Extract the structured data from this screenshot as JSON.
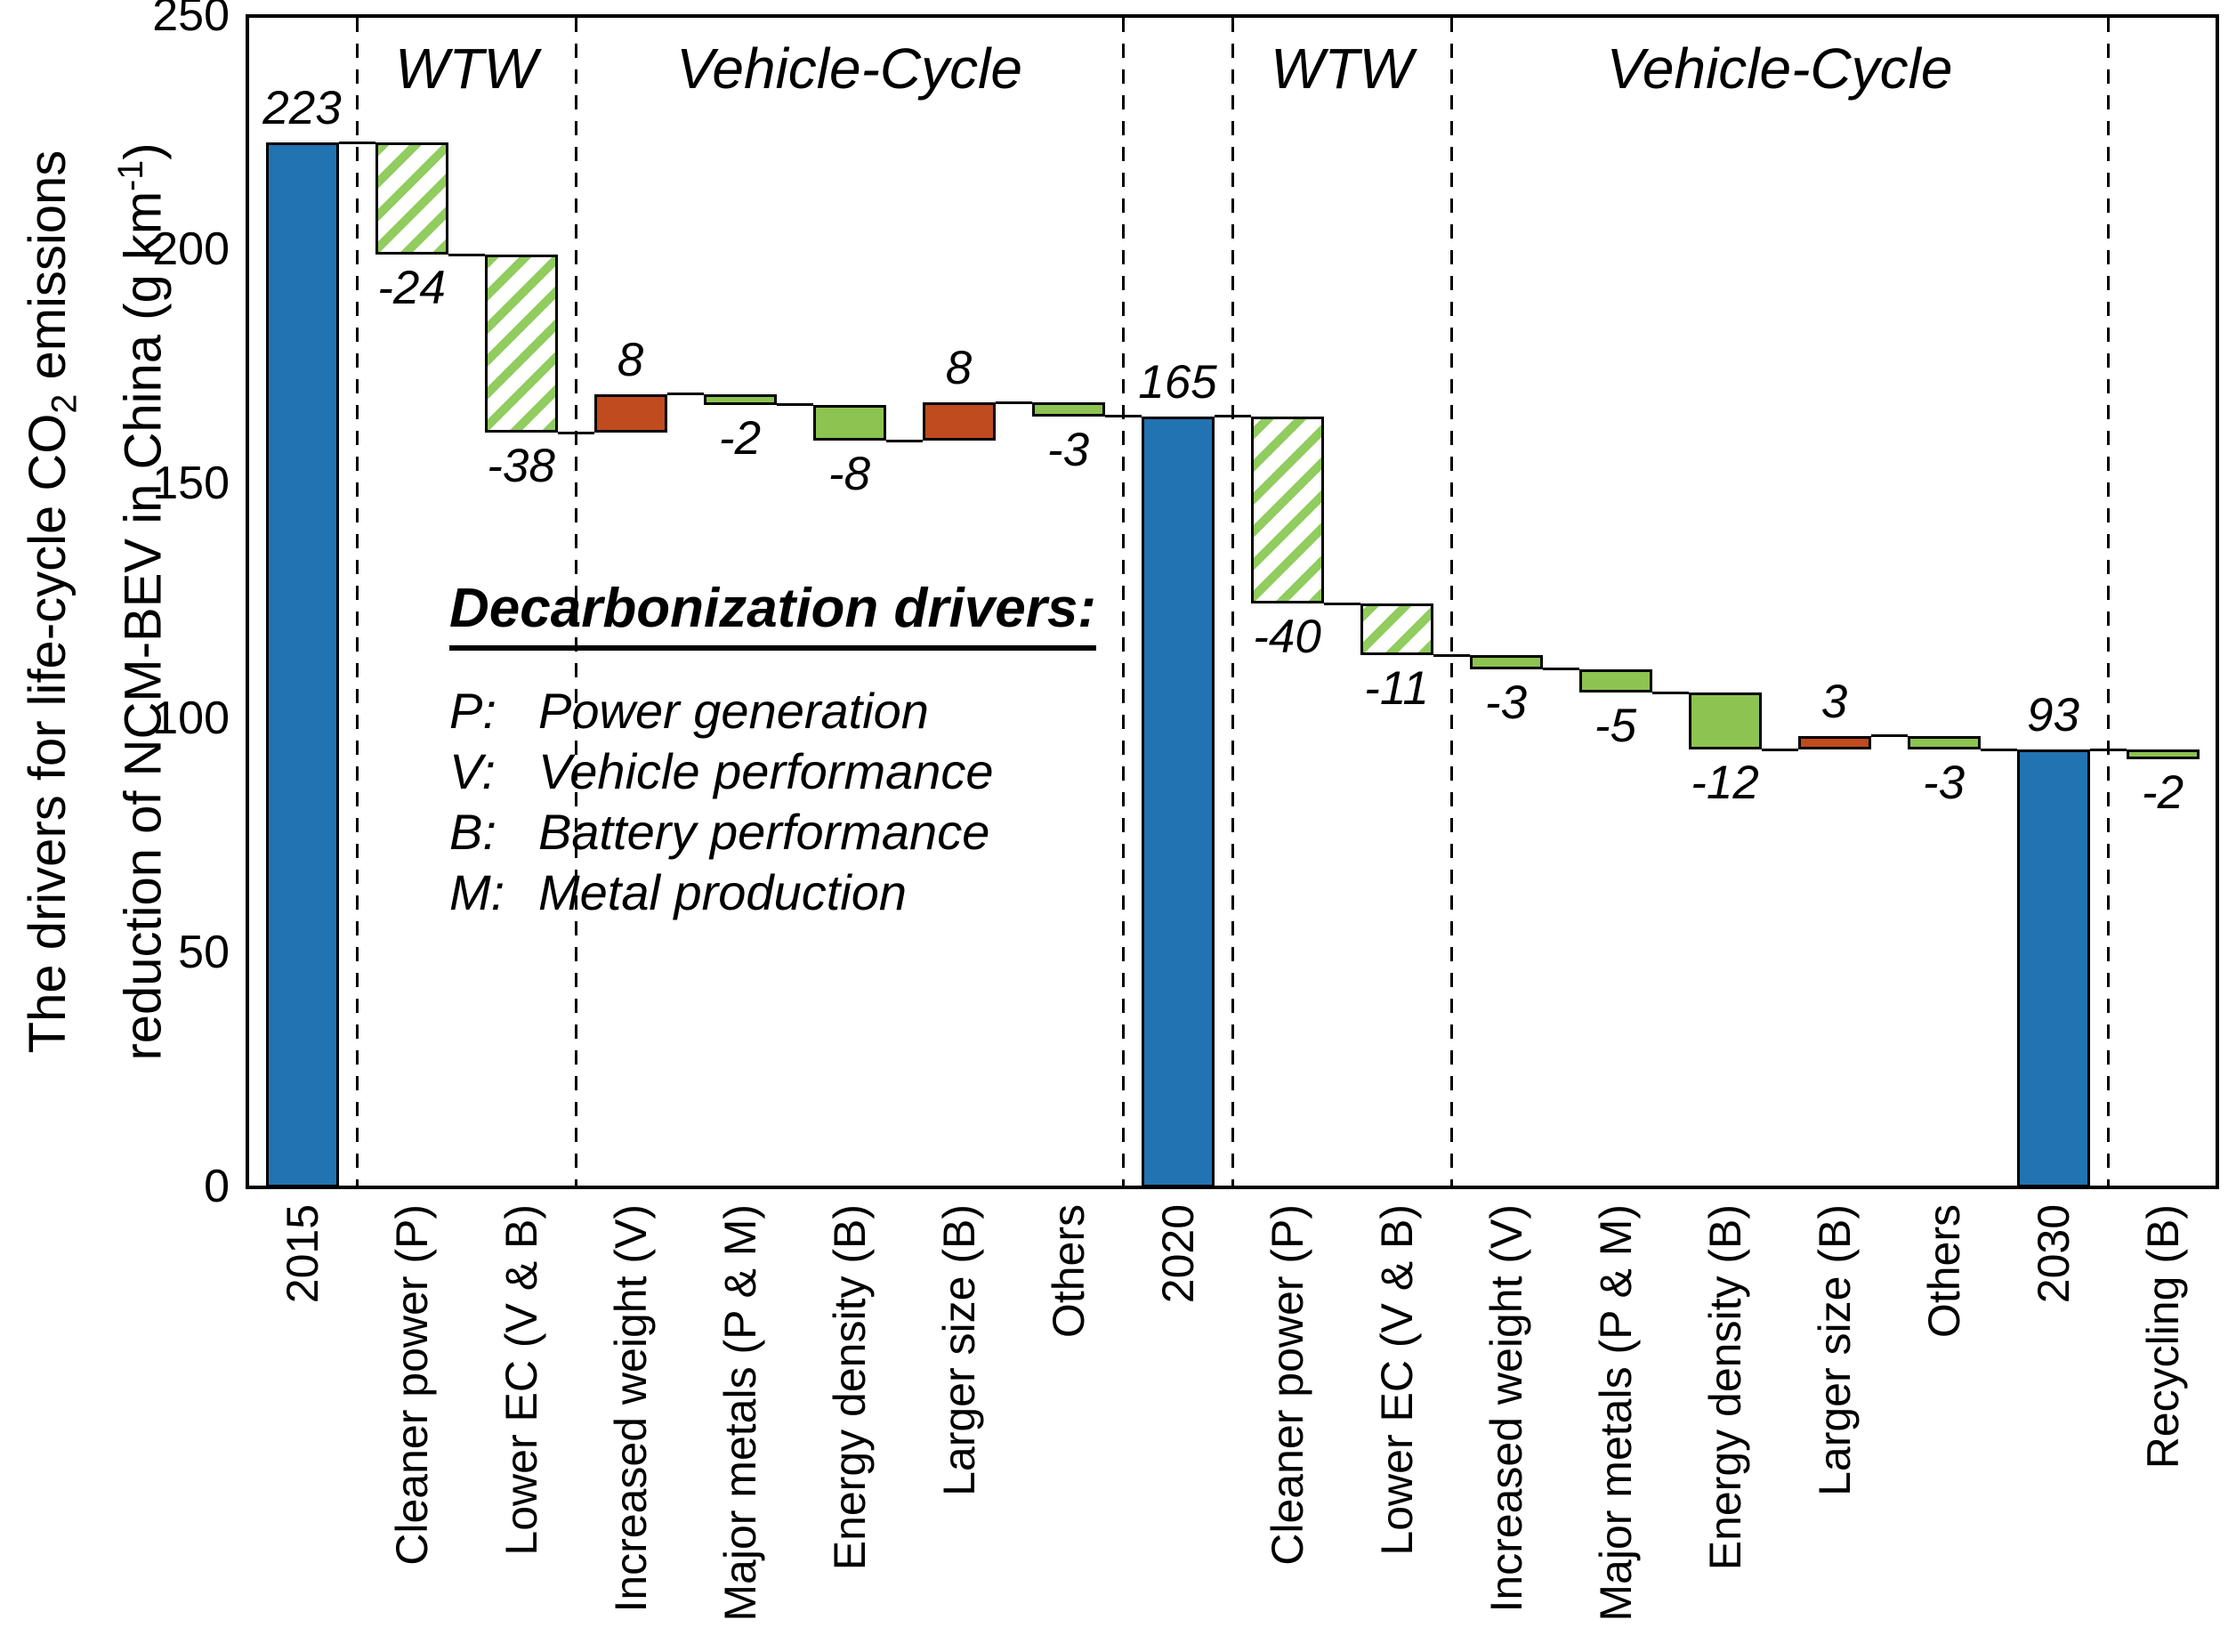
{
  "chart_data": {
    "type": "bar",
    "subtype": "waterfall",
    "title": "",
    "ylabel": {
      "line1": {
        "pre": "The drivers for life-cycle CO",
        "sub": "2",
        "post": " emissions"
      },
      "line2": {
        "pre": "reduction of NCM-BEV in China (g km",
        "sup": "-1",
        "post": ")"
      }
    },
    "ylim": [
      0,
      250
    ],
    "yticks": [
      0,
      50,
      100,
      150,
      200,
      250
    ],
    "grid": false,
    "bars": [
      {
        "category": "2015",
        "kind": "total",
        "style": "blue",
        "start": 0,
        "end": 223,
        "value": 223,
        "label": "223",
        "label_pos": "above"
      },
      {
        "category": "Cleaner power (P)",
        "kind": "delta",
        "style": "hatch",
        "start": 223,
        "end": 199,
        "value": -24,
        "label": "-24",
        "label_pos": "below"
      },
      {
        "category": "Lower EC (V & B)",
        "kind": "delta",
        "style": "hatch",
        "start": 199,
        "end": 161,
        "value": -38,
        "label": "-38",
        "label_pos": "below"
      },
      {
        "category": "Increased weight (V)",
        "kind": "delta",
        "style": "red",
        "start": 161,
        "end": 169.3,
        "value": 8,
        "label": "8",
        "label_pos": "above"
      },
      {
        "category": "Major metals (P & M)",
        "kind": "delta",
        "style": "green",
        "start": 169.3,
        "end": 167,
        "value": -2,
        "label": "-2",
        "label_pos": "below"
      },
      {
        "category": "Energy density (B)",
        "kind": "delta",
        "style": "green",
        "start": 167,
        "end": 159.3,
        "value": -8,
        "label": "-8",
        "label_pos": "below"
      },
      {
        "category": "Larger size (B)",
        "kind": "delta",
        "style": "red",
        "start": 159.3,
        "end": 167.5,
        "value": 8,
        "label": "8",
        "label_pos": "above"
      },
      {
        "category": "Others",
        "kind": "delta",
        "style": "green",
        "start": 167.5,
        "end": 164.6,
        "value": -3,
        "label": "-3",
        "label_pos": "below"
      },
      {
        "category": "2020",
        "kind": "total",
        "style": "blue",
        "start": 0,
        "end": 164.6,
        "value": 165,
        "label": "165",
        "label_pos": "above"
      },
      {
        "category": "Cleaner power (P)",
        "kind": "delta",
        "style": "hatch",
        "start": 164.6,
        "end": 124.6,
        "value": -40,
        "label": "-40",
        "label_pos": "below"
      },
      {
        "category": "Lower EC (V & B)",
        "kind": "delta",
        "style": "hatch",
        "start": 124.6,
        "end": 113.6,
        "value": -11,
        "label": "-11",
        "label_pos": "below"
      },
      {
        "category": "Increased weight (V)",
        "kind": "delta",
        "style": "green",
        "start": 113.6,
        "end": 110.6,
        "value": -3,
        "label": "-3",
        "label_pos": "below"
      },
      {
        "category": "Major metals (P & M)",
        "kind": "delta",
        "style": "green",
        "start": 110.6,
        "end": 105.6,
        "value": -5,
        "label": "-5",
        "label_pos": "below"
      },
      {
        "category": "Energy density (B)",
        "kind": "delta",
        "style": "green",
        "start": 105.6,
        "end": 93.4,
        "value": -12,
        "label": "-12",
        "label_pos": "below"
      },
      {
        "category": "Larger size (B)",
        "kind": "delta",
        "style": "red",
        "start": 93.4,
        "end": 96.4,
        "value": 3,
        "label": "3",
        "label_pos": "above"
      },
      {
        "category": "Others",
        "kind": "delta",
        "style": "green",
        "start": 96.4,
        "end": 93.4,
        "value": -3,
        "label": "-3",
        "label_pos": "below"
      },
      {
        "category": "2030",
        "kind": "total",
        "style": "blue",
        "start": 0,
        "end": 93.4,
        "value": 93,
        "label": "93",
        "label_pos": "above"
      },
      {
        "category": "Recycling (B)",
        "kind": "delta",
        "style": "green",
        "start": 93.4,
        "end": 91.4,
        "value": -2,
        "label": "-2",
        "label_pos": "below"
      }
    ],
    "separators_after_bar_index": [
      0,
      2,
      7,
      8,
      10,
      16
    ],
    "regions": [
      {
        "text": "WTW",
        "from": 1,
        "to": 2
      },
      {
        "text": "Vehicle-Cycle",
        "from": 3,
        "to": 7
      },
      {
        "text": "WTW",
        "from": 9,
        "to": 10
      },
      {
        "text": "Vehicle-Cycle",
        "from": 11,
        "to": 16
      }
    ],
    "colors": {
      "total_bar": "#2273b1",
      "decrease_bar": "#8cc351",
      "increase_bar": "#bf4b1f",
      "hatch_stripe": "#90cc5e",
      "axis": "#000000"
    }
  },
  "legend": {
    "title": "Decarbonization drivers:",
    "items": [
      {
        "key": "P:",
        "label": "Power generation"
      },
      {
        "key": "V:",
        "label": "Vehicle performance"
      },
      {
        "key": "B:",
        "label": "Battery performance"
      },
      {
        "key": "M:",
        "label": "Metal production"
      }
    ]
  }
}
